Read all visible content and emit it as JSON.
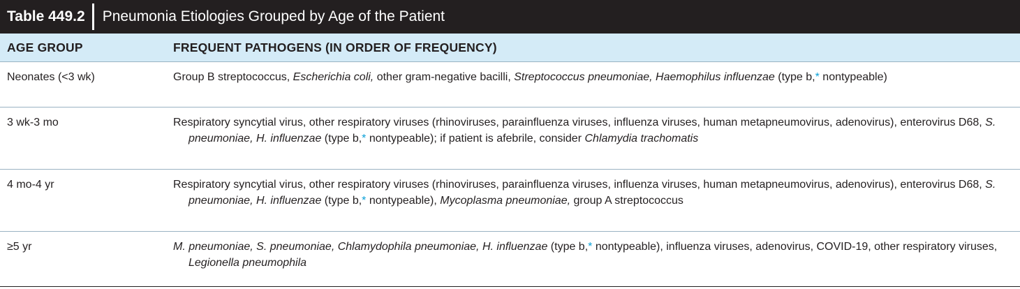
{
  "table": {
    "number": "Table 449.2",
    "title": "Pneumonia Etiologies Grouped by Age of the Patient",
    "headers": {
      "age_group": "AGE GROUP",
      "pathogens": "FREQUENT PATHOGENS (IN ORDER OF FREQUENCY)"
    },
    "rows": [
      {
        "age": "Neonates (<3 wk)",
        "segments": [
          {
            "t": "Group B streptococcus, "
          },
          {
            "t": "Escherichia coli,",
            "i": true
          },
          {
            "t": " other gram-negative bacilli, "
          },
          {
            "t": "Streptococcus pneumoniae, Haemophilus influenzae",
            "i": true
          },
          {
            "t": " (type b,"
          },
          {
            "t": "*",
            "star": true
          },
          {
            "t": " nontypeable)"
          }
        ]
      },
      {
        "age": "3 wk-3 mo",
        "segments": [
          {
            "t": "Respiratory syncytial virus, other respiratory viruses (rhinoviruses, parainfluenza viruses, influenza viruses, human metapneumovirus, adenovirus), enterovirus D68, "
          },
          {
            "t": "S. pneumoniae, H. influenzae",
            "i": true
          },
          {
            "t": " (type b,"
          },
          {
            "t": "*",
            "star": true
          },
          {
            "t": " nontypeable); if patient is afebrile, consider "
          },
          {
            "t": "Chlamydia trachomatis",
            "i": true
          }
        ]
      },
      {
        "age": "4 mo-4 yr",
        "segments": [
          {
            "t": "Respiratory syncytial virus, other respiratory viruses (rhinoviruses, parainfluenza viruses, influenza viruses, human metapneumovirus, adenovirus), enterovirus D68, "
          },
          {
            "t": "S. pneumoniae, H. influenzae",
            "i": true
          },
          {
            "t": " (type b,"
          },
          {
            "t": "*",
            "star": true
          },
          {
            "t": " nontypeable), "
          },
          {
            "t": "Mycoplasma pneumoniae,",
            "i": true
          },
          {
            "t": " group A streptococcus"
          }
        ]
      },
      {
        "age": "≥5 yr",
        "segments": [
          {
            "t": "M. pneumoniae, S. pneumoniae, Chlamydophila pneumoniae, H. influenzae",
            "i": true
          },
          {
            "t": " (type b,"
          },
          {
            "t": "*",
            "star": true
          },
          {
            "t": " nontypeable), influenza viruses, adenovirus, COVID-19, other respiratory viruses, "
          },
          {
            "t": "Legionella pneumophila",
            "i": true
          }
        ]
      }
    ]
  },
  "colors": {
    "title_bg": "#231f20",
    "header_bg": "#d4ebf7",
    "asterisk": "#0aa0d8"
  }
}
